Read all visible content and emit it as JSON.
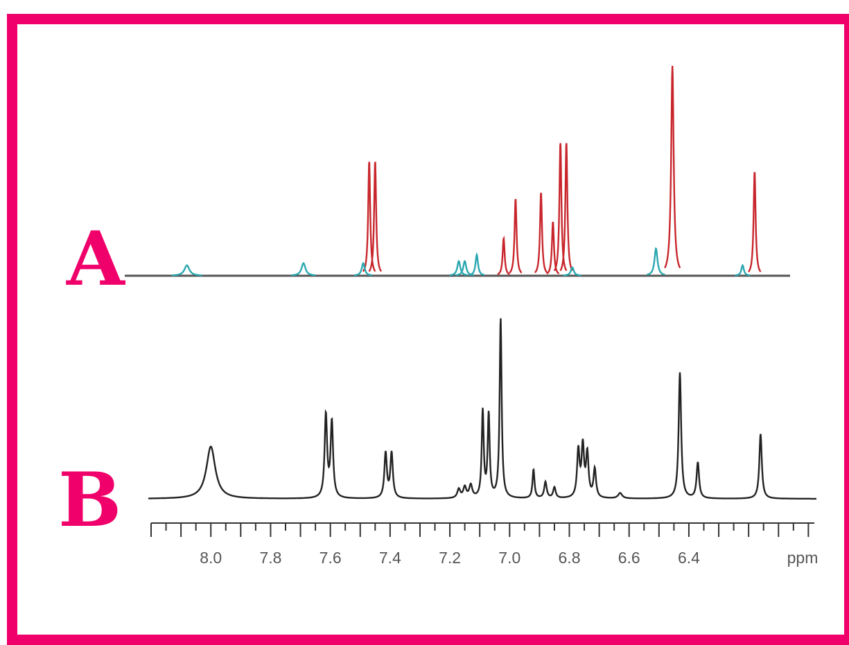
{
  "colors": {
    "frame": "#f0006a",
    "spectrum_a_primary": "#c8262c",
    "spectrum_a_secondary": "#2aa7b0",
    "spectrum_a_baseline": "#555555",
    "spectrum_b": "#222222",
    "axis": "#333333"
  },
  "chart_data": {
    "type": "line",
    "panels": [
      {
        "label": "A",
        "series": [
          {
            "peaks": [
              {
                "ppm": 7.47,
                "height": 0.55,
                "width": 0.004
              },
              {
                "ppm": 7.45,
                "height": 0.55,
                "width": 0.004
              },
              {
                "ppm": 7.02,
                "height": 0.18,
                "width": 0.004
              },
              {
                "ppm": 6.98,
                "height": 0.37,
                "width": 0.004
              },
              {
                "ppm": 6.895,
                "height": 0.4,
                "width": 0.004
              },
              {
                "ppm": 6.855,
                "height": 0.26,
                "width": 0.004
              },
              {
                "ppm": 6.83,
                "height": 0.64,
                "width": 0.004
              },
              {
                "ppm": 6.81,
                "height": 0.64,
                "width": 0.004
              },
              {
                "ppm": 6.455,
                "height": 1.0,
                "width": 0.005
              },
              {
                "ppm": 6.18,
                "height": 0.5,
                "width": 0.004
              }
            ]
          },
          {
            "peaks": [
              {
                "ppm": 8.08,
                "height": 0.05,
                "width": 0.01
              },
              {
                "ppm": 7.69,
                "height": 0.06,
                "width": 0.008
              },
              {
                "ppm": 7.49,
                "height": 0.06,
                "width": 0.006
              },
              {
                "ppm": 7.17,
                "height": 0.07,
                "width": 0.006
              },
              {
                "ppm": 7.15,
                "height": 0.07,
                "width": 0.006
              },
              {
                "ppm": 7.11,
                "height": 0.1,
                "width": 0.005
              },
              {
                "ppm": 6.79,
                "height": 0.04,
                "width": 0.006
              },
              {
                "ppm": 6.51,
                "height": 0.13,
                "width": 0.006
              },
              {
                "ppm": 6.22,
                "height": 0.05,
                "width": 0.005
              }
            ]
          }
        ]
      },
      {
        "label": "B",
        "series": [
          {
            "peaks": [
              {
                "ppm": 8.0,
                "height": 0.29,
                "width": 0.018
              },
              {
                "ppm": 7.615,
                "height": 0.46,
                "width": 0.005
              },
              {
                "ppm": 7.595,
                "height": 0.42,
                "width": 0.005
              },
              {
                "ppm": 7.415,
                "height": 0.25,
                "width": 0.005
              },
              {
                "ppm": 7.395,
                "height": 0.25,
                "width": 0.005
              },
              {
                "ppm": 7.17,
                "height": 0.05,
                "width": 0.006
              },
              {
                "ppm": 7.15,
                "height": 0.06,
                "width": 0.006
              },
              {
                "ppm": 7.13,
                "height": 0.07,
                "width": 0.006
              },
              {
                "ppm": 7.09,
                "height": 0.48,
                "width": 0.004
              },
              {
                "ppm": 7.07,
                "height": 0.46,
                "width": 0.004
              },
              {
                "ppm": 7.03,
                "height": 1.0,
                "width": 0.004
              },
              {
                "ppm": 6.92,
                "height": 0.16,
                "width": 0.004
              },
              {
                "ppm": 6.88,
                "height": 0.09,
                "width": 0.005
              },
              {
                "ppm": 6.85,
                "height": 0.06,
                "width": 0.005
              },
              {
                "ppm": 6.77,
                "height": 0.26,
                "width": 0.005
              },
              {
                "ppm": 6.755,
                "height": 0.28,
                "width": 0.005
              },
              {
                "ppm": 6.74,
                "height": 0.24,
                "width": 0.005
              },
              {
                "ppm": 6.715,
                "height": 0.16,
                "width": 0.005
              },
              {
                "ppm": 6.63,
                "height": 0.03,
                "width": 0.008
              },
              {
                "ppm": 6.43,
                "height": 0.7,
                "width": 0.005
              },
              {
                "ppm": 6.37,
                "height": 0.2,
                "width": 0.005
              },
              {
                "ppm": 6.16,
                "height": 0.36,
                "width": 0.005
              }
            ]
          }
        ]
      }
    ],
    "x_axis": {
      "unit_label": "ppm",
      "reversed": true,
      "range": [
        8.2,
        5.98
      ],
      "tick_labels": [
        "8.0",
        "7.8",
        "7.6",
        "7.4",
        "7.2",
        "7.0",
        "6.8",
        "6.6",
        "6.4"
      ],
      "tick_values": [
        8.0,
        7.8,
        7.6,
        7.4,
        7.2,
        7.0,
        6.8,
        6.6,
        6.4
      ],
      "minor_tick_step": 0.05
    },
    "grid": false
  }
}
